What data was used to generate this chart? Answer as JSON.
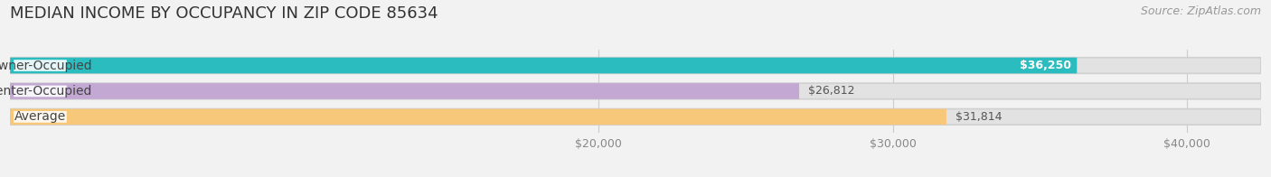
{
  "title": "MEDIAN INCOME BY OCCUPANCY IN ZIP CODE 85634",
  "source": "Source: ZipAtlas.com",
  "categories": [
    "Owner-Occupied",
    "Renter-Occupied",
    "Average"
  ],
  "values": [
    36250,
    26812,
    31814
  ],
  "value_labels": [
    "$36,250",
    "$26,812",
    "$31,814"
  ],
  "label_inside": [
    true,
    false,
    false
  ],
  "label_colors": [
    "#ffffff",
    "#555555",
    "#555555"
  ],
  "bar_colors": [
    "#2abcbf",
    "#c4a8d4",
    "#f8c87a"
  ],
  "background_color": "#f2f2f2",
  "bar_bg_color": "#e2e2e2",
  "xlim_min": 0,
  "xlim_max": 42500,
  "xticks": [
    20000,
    30000,
    40000
  ],
  "xtick_labels": [
    "$20,000",
    "$30,000",
    "$40,000"
  ],
  "title_fontsize": 13,
  "source_fontsize": 9,
  "tick_fontsize": 9,
  "label_fontsize": 9,
  "category_fontsize": 10,
  "bar_height": 0.62,
  "bar_gap": 0.38
}
